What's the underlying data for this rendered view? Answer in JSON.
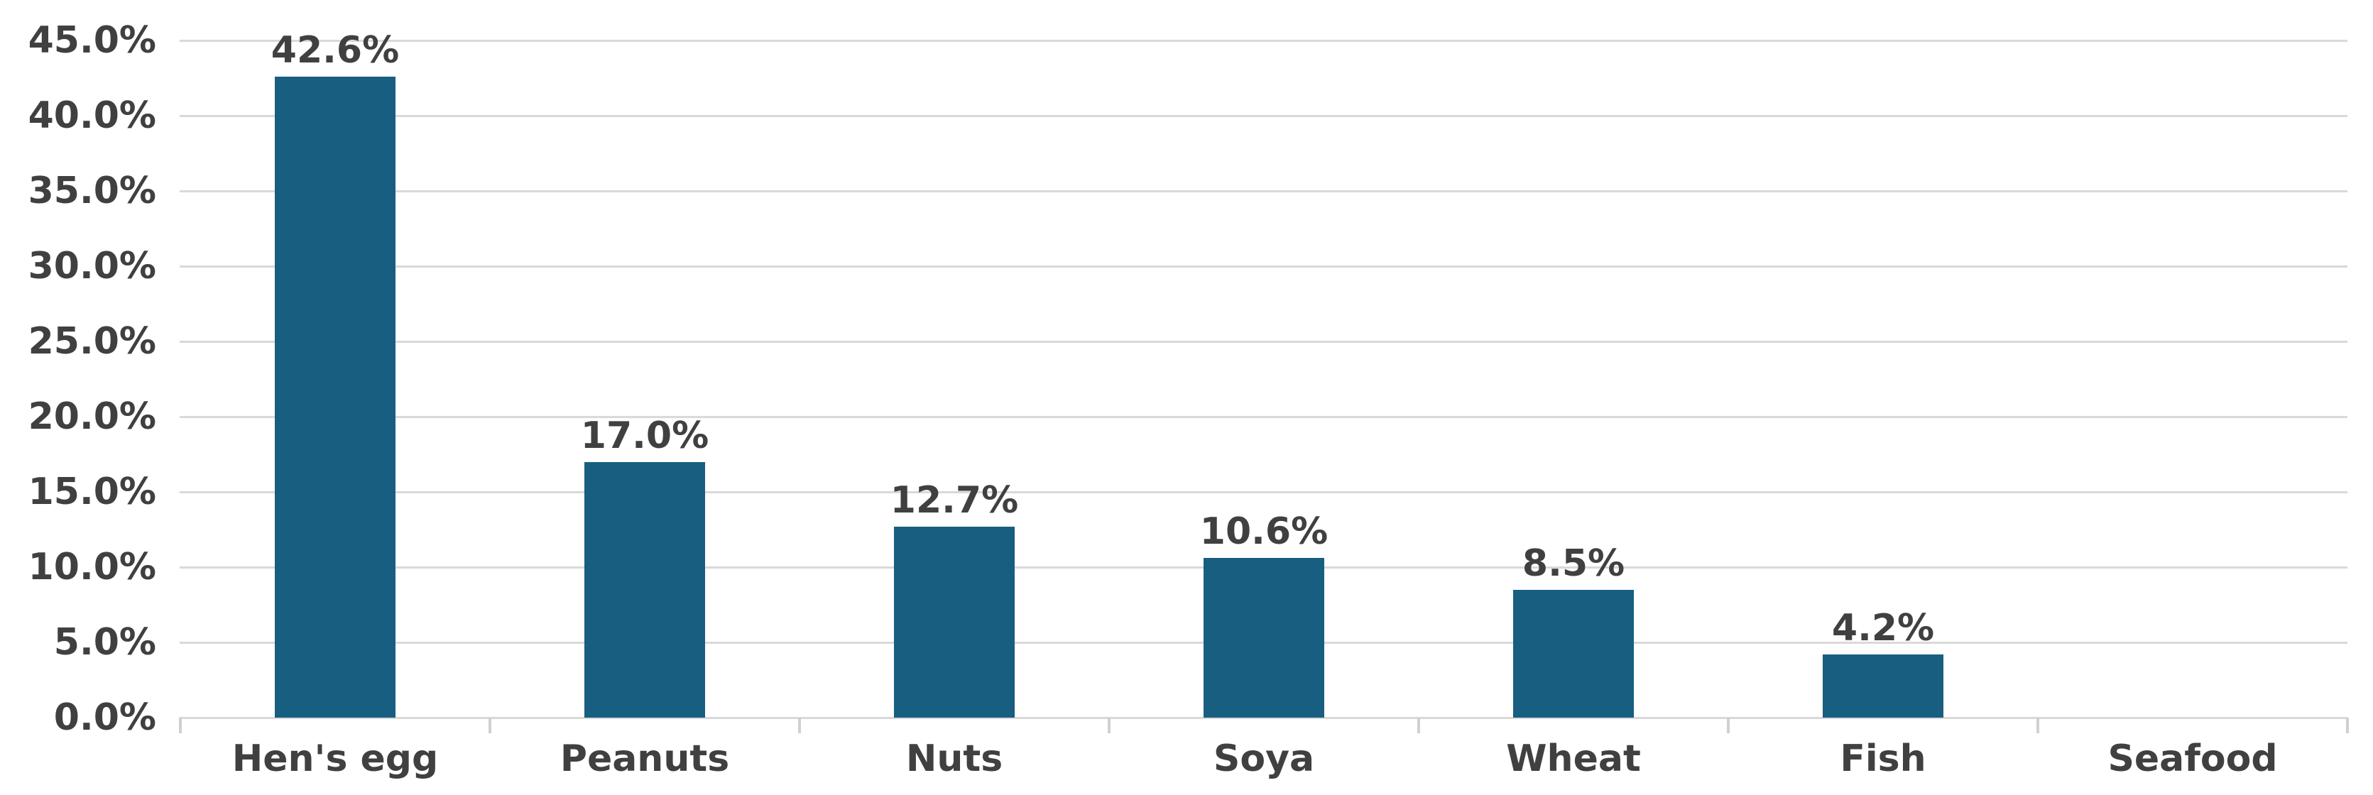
{
  "chart_data": {
    "type": "bar",
    "title": "",
    "xlabel": "",
    "ylabel": "",
    "categories": [
      "Hen's egg",
      "Peanuts",
      "Nuts",
      "Soya",
      "Wheat",
      "Fish",
      "Seafood"
    ],
    "values": [
      42.6,
      17.0,
      12.7,
      10.6,
      8.5,
      4.2,
      0
    ],
    "data_labels": [
      "42.6%",
      "17.0%",
      "12.7%",
      "10.6%",
      "8.5%",
      "4.2%",
      ""
    ],
    "y_tick_labels": [
      "45.0%",
      "40.0%",
      "35.0%",
      "30.0%",
      "25.0%",
      "20.0%",
      "15.0%",
      "10.0%",
      "5.0%",
      "0.0%"
    ],
    "y_tick_values": [
      45,
      40,
      35,
      30,
      25,
      20,
      15,
      10,
      5,
      0
    ],
    "ylim": [
      0,
      45
    ],
    "grid": true,
    "legend": false,
    "colors": {
      "bar": "#175E81",
      "gridline": "#D9D9D9",
      "axis_tick": "#D0D0D0",
      "text": "#404040",
      "background": "#FFFFFF"
    }
  }
}
